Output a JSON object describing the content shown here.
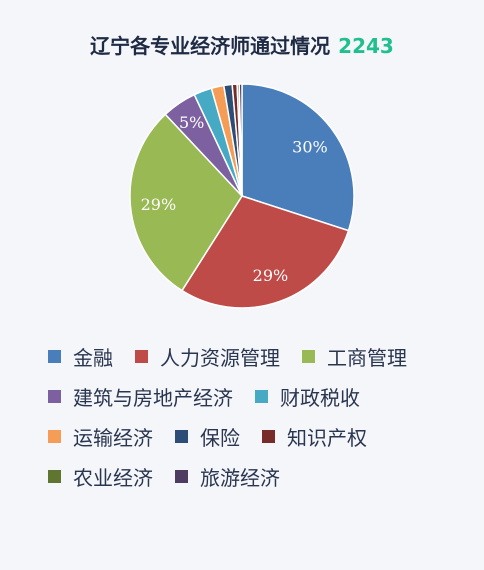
{
  "chart_data": {
    "type": "pie",
    "title": "辽宁各专业经济师通过情况",
    "total": "2243",
    "slices": [
      {
        "name": "金融",
        "value": 30,
        "label": "30%",
        "color": "#4a7ebb"
      },
      {
        "name": "人力资源管理",
        "value": 29,
        "label": "29%",
        "color": "#be4b48"
      },
      {
        "name": "工商管理",
        "value": 29,
        "label": "29%",
        "color": "#98b954"
      },
      {
        "name": "建筑与房地产经济",
        "value": 5,
        "label": "5%",
        "color": "#7d60a0"
      },
      {
        "name": "财政税收",
        "value": 2.6,
        "label": "",
        "color": "#46aac4"
      },
      {
        "name": "运输经济",
        "value": 1.8,
        "label": "",
        "color": "#f59d56"
      },
      {
        "name": "保险",
        "value": 1.2,
        "label": "",
        "color": "#2c4d75"
      },
      {
        "name": "知识产权",
        "value": 0.7,
        "label": "",
        "color": "#772c2a"
      },
      {
        "name": "农业经济",
        "value": 0.3,
        "label": "",
        "color": "#5f7530"
      },
      {
        "name": "旅游经济",
        "value": 0.4,
        "label": "",
        "color": "#4d3b62"
      }
    ],
    "legend_rows": [
      [
        "金融",
        "人力资源管理",
        "工商管理"
      ],
      [
        "建筑与房地产经济",
        "财政税收"
      ],
      [
        "运输经济",
        "保险",
        "知识产权"
      ],
      [
        "农业经济",
        "旅游经济"
      ]
    ]
  }
}
